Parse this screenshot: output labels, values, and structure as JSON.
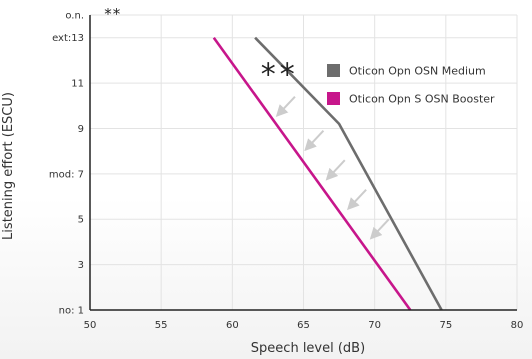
{
  "chart_data": {
    "type": "line",
    "xlabel": "Speech level (dB)",
    "ylabel": "Listening effort (ESCU)",
    "xlim": [
      50,
      80
    ],
    "ylim": [
      1,
      14
    ],
    "x_ticks": [
      "50",
      "55",
      "60",
      "65",
      "70",
      "75",
      "80"
    ],
    "y_ticks": [
      {
        "value": 1,
        "label": "no: 1"
      },
      {
        "value": 3,
        "label": "3"
      },
      {
        "value": 5,
        "label": "5"
      },
      {
        "value": 7,
        "label": "mod: 7"
      },
      {
        "value": 9,
        "label": "9"
      },
      {
        "value": 11,
        "label": "11"
      },
      {
        "value": 13,
        "label": "ext:13"
      },
      {
        "value": 14,
        "label": "o.n."
      }
    ],
    "grid": true,
    "legend_position": "top-right",
    "series": [
      {
        "name": "Oticon Opn OSN Medium",
        "color": "#6d6d6d",
        "points": [
          [
            61.6,
            13.0
          ],
          [
            67.5,
            9.2
          ],
          [
            74.7,
            1.0
          ]
        ]
      },
      {
        "name": "Oticon Opn S OSN Booster",
        "color": "#c7168b",
        "points": [
          [
            58.7,
            13.0
          ],
          [
            72.5,
            1.0
          ]
        ]
      }
    ],
    "arrows": [
      [
        [
          64.4,
          10.4
        ],
        [
          63.2,
          9.6
        ]
      ],
      [
        [
          66.4,
          8.9
        ],
        [
          65.2,
          8.1
        ]
      ],
      [
        [
          67.9,
          7.6
        ],
        [
          66.7,
          6.8
        ]
      ],
      [
        [
          69.4,
          6.3
        ],
        [
          68.2,
          5.5
        ]
      ],
      [
        [
          71.0,
          5.0
        ],
        [
          69.8,
          4.2
        ]
      ]
    ],
    "arrow_color": "#cccccc",
    "annotations": [
      {
        "text": "**",
        "x": 51,
        "y": 14,
        "size": "small"
      },
      {
        "text": "**",
        "x": 62,
        "y": 11.55,
        "size": "large"
      }
    ]
  }
}
